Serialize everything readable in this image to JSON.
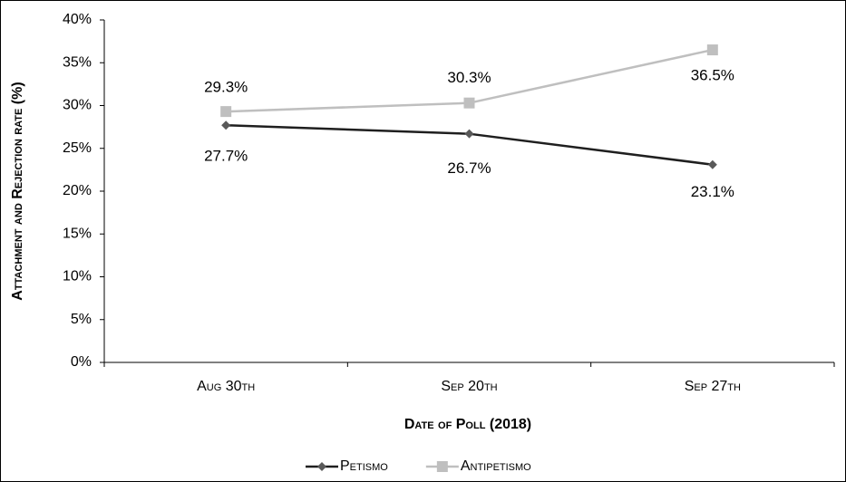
{
  "chart_data": {
    "type": "line",
    "x_label": "Date of Poll (2018)",
    "y_label": "Attachment and Rejection rate (%)",
    "categories": [
      "Aug 30th",
      "Sep 20th",
      "Sep 27th"
    ],
    "series": [
      {
        "name": "Petismo",
        "color": "#1f1f1f",
        "marker_color": "#595959",
        "marker": "diamond",
        "values": [
          27.7,
          26.7,
          23.1
        ],
        "value_labels": [
          "27.7%",
          "26.7%",
          "23.1%"
        ]
      },
      {
        "name": "Antipetismo",
        "color": "#bfbfbf",
        "marker_color": "#bfbfbf",
        "marker": "square",
        "values": [
          29.3,
          30.3,
          36.5
        ],
        "value_labels": [
          "29.3%",
          "30.3%",
          "36.5%"
        ]
      }
    ],
    "ylim": [
      0,
      40
    ],
    "yticks": [
      {
        "value": 0,
        "label": "0%"
      },
      {
        "value": 5,
        "label": "5%"
      },
      {
        "value": 10,
        "label": "10%"
      },
      {
        "value": 15,
        "label": "15%"
      },
      {
        "value": 20,
        "label": "20%"
      },
      {
        "value": 25,
        "label": "25%"
      },
      {
        "value": 30,
        "label": "30%"
      },
      {
        "value": 35,
        "label": "35%"
      },
      {
        "value": 40,
        "label": "40%"
      }
    ],
    "grid": false,
    "legend": "bottom"
  }
}
